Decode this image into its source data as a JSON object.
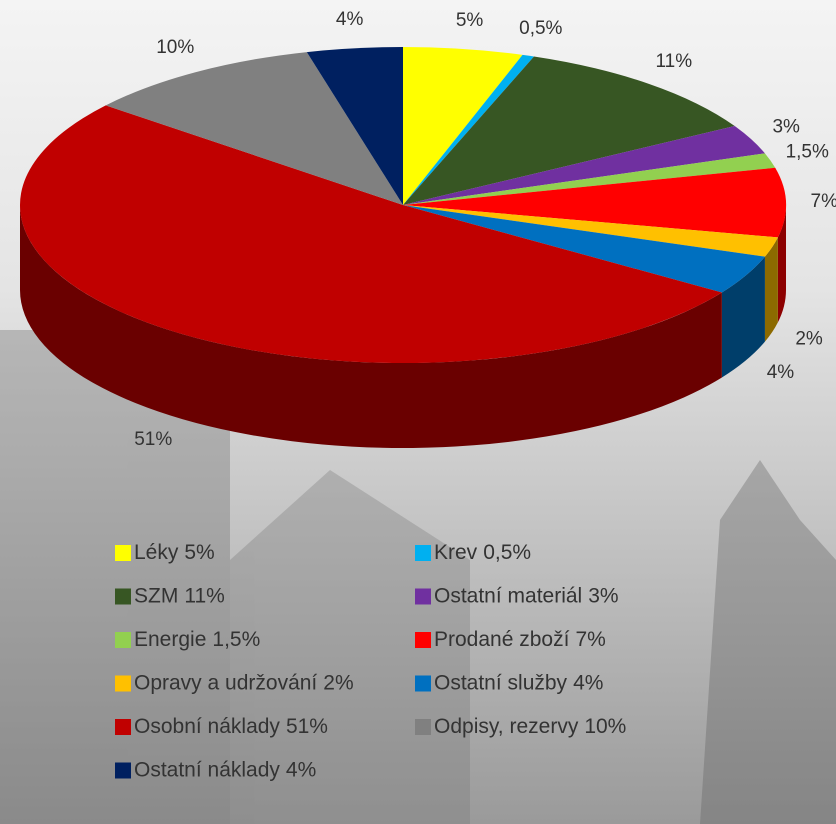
{
  "chart_data": {
    "type": "pie",
    "style": "3d",
    "categories": [
      "Léky",
      "Krev",
      "SZM",
      "Ostatní materiál",
      "Energie",
      "Prodané zboží",
      "Opravy a udržování",
      "Ostatní služby",
      "Osobní náklady",
      "Odpisy, rezervy",
      "Ostatní náklady"
    ],
    "values": [
      5,
      0.5,
      11,
      3,
      1.5,
      7,
      2,
      4,
      51,
      10,
      4
    ],
    "value_labels": [
      "5%",
      "0,5%",
      "11%",
      "3%",
      "1,5%",
      "7%",
      "2%",
      "4%",
      "51%",
      "10%",
      "4%"
    ],
    "colors": [
      "#ffff00",
      "#00b0f0",
      "#375623",
      "#7030a0",
      "#92d050",
      "#ff0000",
      "#ffc000",
      "#0070c0",
      "#c00000",
      "#808080",
      "#002060"
    ],
    "legend": "bottom"
  }
}
